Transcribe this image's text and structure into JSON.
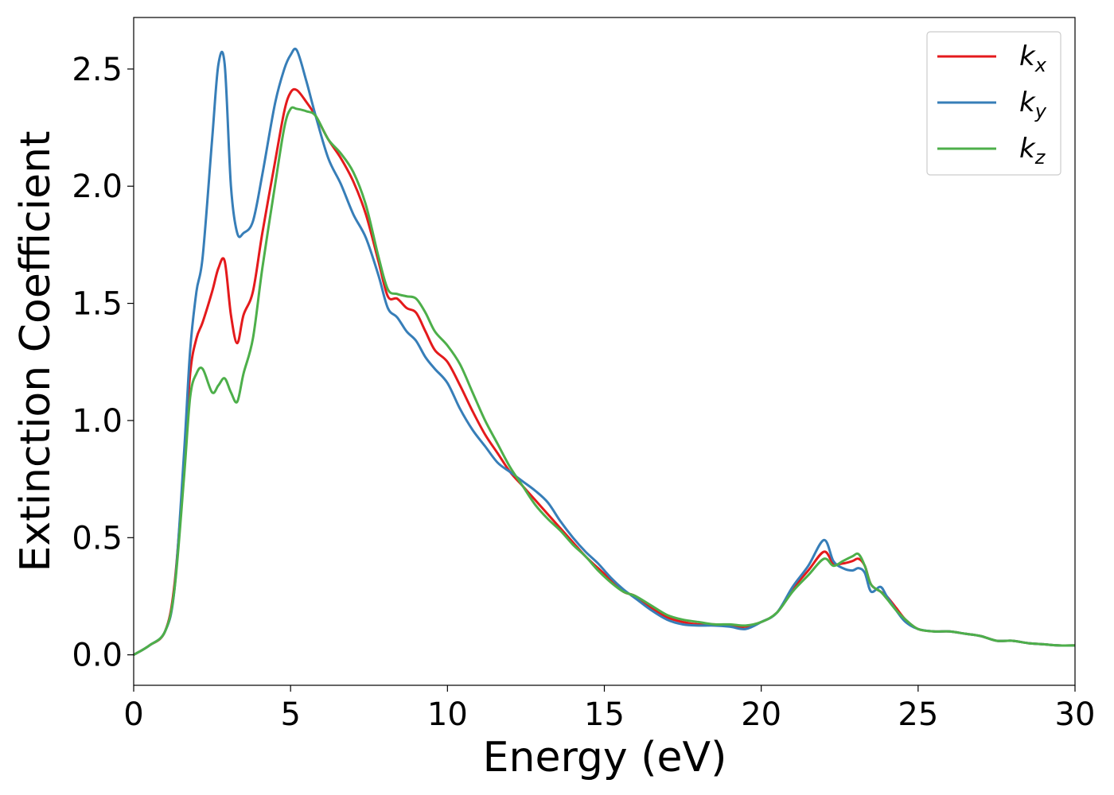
{
  "chart_data": {
    "type": "line",
    "xlabel": "Energy (eV)",
    "ylabel": "Extinction Coefficient",
    "xlim": [
      0,
      30
    ],
    "ylim": [
      -0.13,
      2.72
    ],
    "xticks": [
      "0",
      "5",
      "10",
      "15",
      "20",
      "25",
      "30"
    ],
    "yticks": [
      "0.0",
      "0.5",
      "1.0",
      "1.5",
      "2.0",
      "2.5"
    ],
    "grid": false,
    "legend_position": "top-right",
    "series": [
      {
        "name": "k",
        "subscript": "x",
        "color": "#e41a1c",
        "x": [
          0,
          0.5,
          1,
          1.3,
          1.6,
          1.8,
          2.0,
          2.2,
          2.5,
          2.7,
          2.9,
          3.1,
          3.3,
          3.5,
          3.8,
          4.1,
          4.5,
          4.8,
          5.0,
          5.2,
          5.5,
          5.8,
          6.2,
          6.6,
          7.0,
          7.4,
          7.8,
          8.1,
          8.4,
          8.7,
          9.0,
          9.3,
          9.6,
          10.0,
          10.4,
          10.8,
          11.2,
          11.6,
          12.0,
          12.4,
          12.8,
          13.2,
          13.6,
          14.0,
          14.4,
          14.8,
          15.2,
          15.6,
          16.0,
          16.5,
          17.0,
          17.5,
          18.0,
          18.5,
          19.0,
          19.5,
          20.0,
          20.5,
          21.0,
          21.5,
          22.0,
          22.3,
          22.6,
          22.9,
          23.1,
          23.3,
          23.5,
          23.8,
          24.0,
          24.3,
          24.6,
          25.0,
          25.5,
          26.0,
          26.5,
          27.0,
          27.5,
          28.0,
          28.5,
          29.0,
          29.5,
          30.0
        ],
        "y": [
          0.0,
          0.04,
          0.1,
          0.3,
          0.8,
          1.2,
          1.35,
          1.42,
          1.55,
          1.65,
          1.68,
          1.45,
          1.33,
          1.45,
          1.55,
          1.8,
          2.1,
          2.32,
          2.4,
          2.41,
          2.36,
          2.3,
          2.2,
          2.12,
          2.02,
          1.88,
          1.68,
          1.53,
          1.52,
          1.48,
          1.46,
          1.38,
          1.3,
          1.25,
          1.15,
          1.04,
          0.94,
          0.86,
          0.78,
          0.72,
          0.66,
          0.6,
          0.54,
          0.48,
          0.42,
          0.37,
          0.32,
          0.27,
          0.25,
          0.2,
          0.16,
          0.14,
          0.13,
          0.13,
          0.125,
          0.12,
          0.14,
          0.18,
          0.28,
          0.36,
          0.44,
          0.39,
          0.39,
          0.4,
          0.41,
          0.38,
          0.3,
          0.27,
          0.25,
          0.2,
          0.15,
          0.11,
          0.1,
          0.1,
          0.09,
          0.08,
          0.06,
          0.06,
          0.05,
          0.045,
          0.04,
          0.04
        ]
      },
      {
        "name": "k",
        "subscript": "y",
        "color": "#377eb8",
        "x": [
          0,
          0.5,
          1,
          1.3,
          1.6,
          1.8,
          2.0,
          2.2,
          2.5,
          2.7,
          2.9,
          3.1,
          3.3,
          3.5,
          3.8,
          4.1,
          4.5,
          4.8,
          5.0,
          5.2,
          5.5,
          5.8,
          6.2,
          6.6,
          7.0,
          7.4,
          7.8,
          8.1,
          8.4,
          8.7,
          9.0,
          9.3,
          9.6,
          10.0,
          10.4,
          10.8,
          11.2,
          11.6,
          12.0,
          12.4,
          12.8,
          13.2,
          13.6,
          14.0,
          14.4,
          14.8,
          15.2,
          15.6,
          16.0,
          16.5,
          17.0,
          17.5,
          18.0,
          18.5,
          19.0,
          19.5,
          20.0,
          20.5,
          21.0,
          21.5,
          22.0,
          22.3,
          22.6,
          22.9,
          23.1,
          23.3,
          23.5,
          23.8,
          24.0,
          24.3,
          24.6,
          25.0,
          25.5,
          26.0,
          26.5,
          27.0,
          27.5,
          28.0,
          28.5,
          29.0,
          29.5,
          30.0
        ],
        "y": [
          0.0,
          0.04,
          0.1,
          0.28,
          0.85,
          1.3,
          1.55,
          1.7,
          2.2,
          2.52,
          2.52,
          2.0,
          1.8,
          1.8,
          1.85,
          2.05,
          2.35,
          2.5,
          2.56,
          2.58,
          2.45,
          2.3,
          2.12,
          2.01,
          1.88,
          1.78,
          1.62,
          1.48,
          1.44,
          1.38,
          1.34,
          1.27,
          1.22,
          1.16,
          1.05,
          0.96,
          0.89,
          0.82,
          0.78,
          0.74,
          0.7,
          0.65,
          0.57,
          0.5,
          0.44,
          0.39,
          0.33,
          0.28,
          0.24,
          0.19,
          0.15,
          0.13,
          0.125,
          0.125,
          0.12,
          0.11,
          0.14,
          0.18,
          0.29,
          0.38,
          0.49,
          0.4,
          0.37,
          0.36,
          0.37,
          0.35,
          0.27,
          0.29,
          0.25,
          0.19,
          0.14,
          0.11,
          0.1,
          0.1,
          0.09,
          0.08,
          0.06,
          0.06,
          0.05,
          0.045,
          0.04,
          0.04
        ]
      },
      {
        "name": "k",
        "subscript": "z",
        "color": "#4daf4a",
        "x": [
          0,
          0.5,
          1,
          1.3,
          1.6,
          1.8,
          2.0,
          2.2,
          2.5,
          2.7,
          2.9,
          3.1,
          3.3,
          3.5,
          3.8,
          4.1,
          4.5,
          4.8,
          5.0,
          5.2,
          5.5,
          5.8,
          6.2,
          6.6,
          7.0,
          7.4,
          7.8,
          8.1,
          8.4,
          8.7,
          9.0,
          9.3,
          9.6,
          10.0,
          10.4,
          10.8,
          11.2,
          11.6,
          12.0,
          12.4,
          12.8,
          13.2,
          13.6,
          14.0,
          14.4,
          14.8,
          15.2,
          15.6,
          16.0,
          16.5,
          17.0,
          17.5,
          18.0,
          18.5,
          19.0,
          19.5,
          20.0,
          20.5,
          21.0,
          21.5,
          22.0,
          22.3,
          22.6,
          22.9,
          23.1,
          23.3,
          23.5,
          23.8,
          24.0,
          24.3,
          24.6,
          25.0,
          25.5,
          26.0,
          26.5,
          27.0,
          27.5,
          28.0,
          28.5,
          29.0,
          29.5,
          30.0
        ],
        "y": [
          0.0,
          0.04,
          0.1,
          0.28,
          0.75,
          1.1,
          1.2,
          1.22,
          1.12,
          1.15,
          1.18,
          1.12,
          1.08,
          1.2,
          1.35,
          1.65,
          2.0,
          2.25,
          2.33,
          2.33,
          2.32,
          2.3,
          2.2,
          2.14,
          2.06,
          1.92,
          1.7,
          1.56,
          1.54,
          1.53,
          1.52,
          1.46,
          1.38,
          1.32,
          1.24,
          1.12,
          1.0,
          0.9,
          0.8,
          0.72,
          0.64,
          0.58,
          0.53,
          0.47,
          0.42,
          0.36,
          0.31,
          0.27,
          0.25,
          0.21,
          0.17,
          0.15,
          0.14,
          0.13,
          0.13,
          0.125,
          0.14,
          0.18,
          0.27,
          0.34,
          0.41,
          0.38,
          0.4,
          0.42,
          0.43,
          0.38,
          0.3,
          0.27,
          0.24,
          0.19,
          0.15,
          0.11,
          0.1,
          0.1,
          0.09,
          0.08,
          0.06,
          0.06,
          0.05,
          0.045,
          0.04,
          0.04
        ]
      }
    ]
  }
}
